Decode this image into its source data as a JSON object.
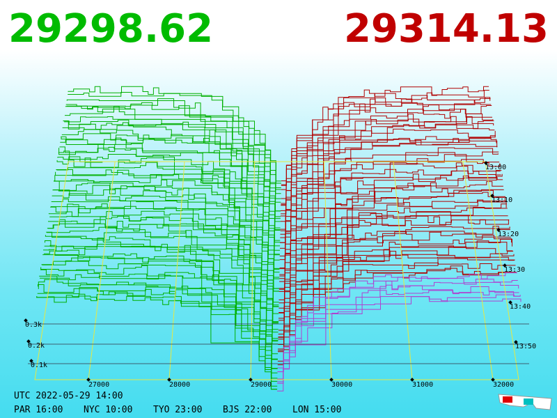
{
  "bid": "29298.62",
  "ask": "29314.13",
  "price_axis": [
    "27000",
    "28000",
    "29000",
    "30000",
    "31000",
    "32000"
  ],
  "depth_axis": [
    "0.3k",
    "0.2k",
    "0.1k"
  ],
  "time_axis": [
    "13:00",
    "13:10",
    "13:20",
    "13:30",
    "13:40",
    "13:50"
  ],
  "timestamp": "UTC 2022-05-29 14:00",
  "clocks": [
    "PAR 16:00",
    "NYC 10:00",
    "TYO 23:00",
    "BJS 22:00",
    "LON 15:00"
  ]
}
